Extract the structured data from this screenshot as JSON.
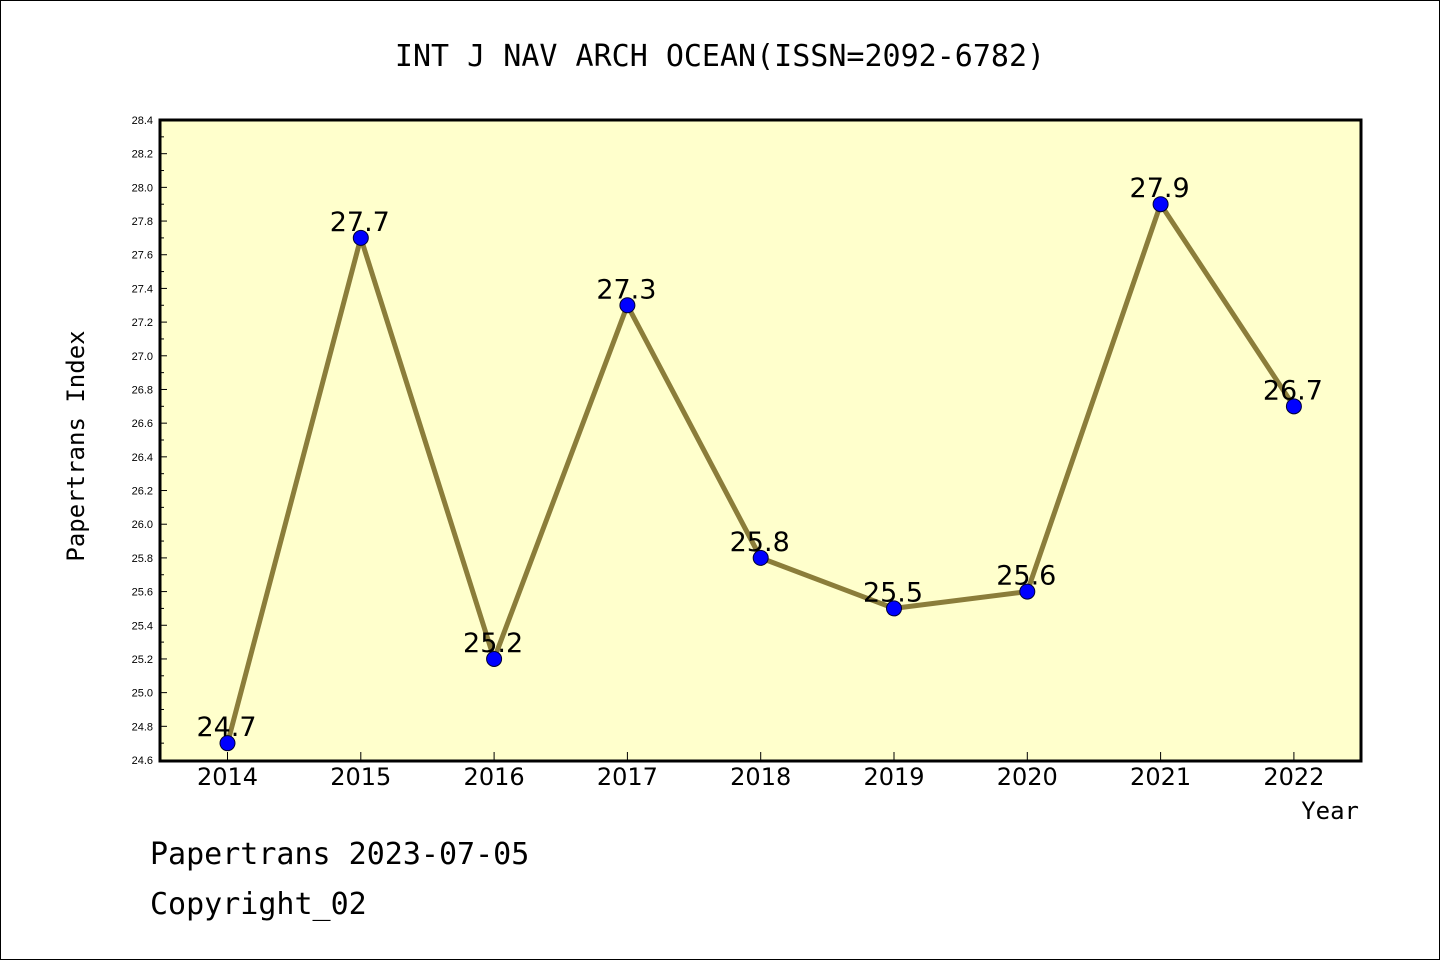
{
  "chart_data": {
    "type": "line",
    "title": "INT J NAV ARCH OCEAN(ISSN=2092-6782)",
    "xlabel": "Year",
    "ylabel": "Papertrans Index",
    "categories": [
      "2014",
      "2015",
      "2016",
      "2017",
      "2018",
      "2019",
      "2020",
      "2021",
      "2022"
    ],
    "values": [
      24.7,
      27.7,
      25.2,
      27.3,
      25.8,
      25.5,
      25.6,
      27.9,
      26.7
    ],
    "data_labels": [
      "24.7",
      "27.7",
      "25.2",
      "27.3",
      "25.8",
      "25.5",
      "25.6",
      "27.9",
      "26.7"
    ],
    "ylim": [
      24.6,
      28.4
    ],
    "yticks": [
      "24.6",
      "24.8",
      "25.0",
      "25.2",
      "25.4",
      "25.6",
      "25.8",
      "26.0",
      "26.2",
      "26.4",
      "26.6",
      "26.8",
      "27.0",
      "27.2",
      "27.4",
      "27.6",
      "27.8",
      "28.0",
      "28.2",
      "28.4"
    ],
    "grid": false,
    "colors": {
      "plot_background": "#ffffcc",
      "line": "#8b7d3a",
      "marker": "#0000ff"
    }
  },
  "footer": {
    "line1": "Papertrans 2023-07-05",
    "line2": "Copyright_02"
  }
}
